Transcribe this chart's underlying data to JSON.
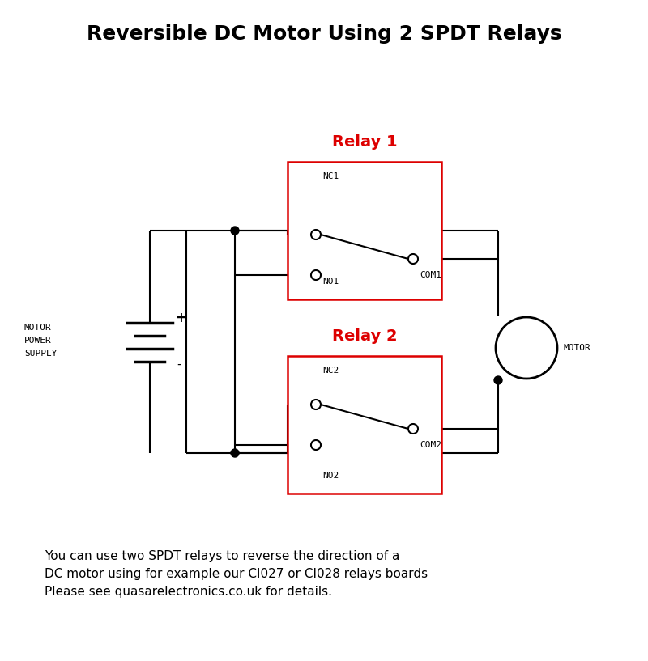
{
  "title": "Reversible DC Motor Using 2 SPDT Relays",
  "title_fontsize": 18,
  "title_fontweight": "bold",
  "relay1_label": "Relay 1",
  "relay2_label": "Relay 2",
  "relay_label_color": "#dd0000",
  "relay_label_fontsize": 14,
  "relay_label_fontweight": "bold",
  "nc1_label": "NC1",
  "no1_label": "NO1",
  "com1_label": "COM1",
  "nc2_label": "NC2",
  "no2_label": "NO2",
  "com2_label": "COM2",
  "motor_label": "MOTOR",
  "plus_label": "+",
  "minus_label": "-",
  "relay_box_color": "#dd0000",
  "wire_color": "#000000",
  "footnote_line1": "You can use two SPDT relays to reverse the direction of a",
  "footnote_line2": "DC motor using for example our CI027 or CI028 relays boards",
  "footnote_line3": "Please see quasarelectronics.co.uk for details.",
  "footnote_fontsize": 11,
  "label_fontsize": 8,
  "monospace_font": "monospace"
}
